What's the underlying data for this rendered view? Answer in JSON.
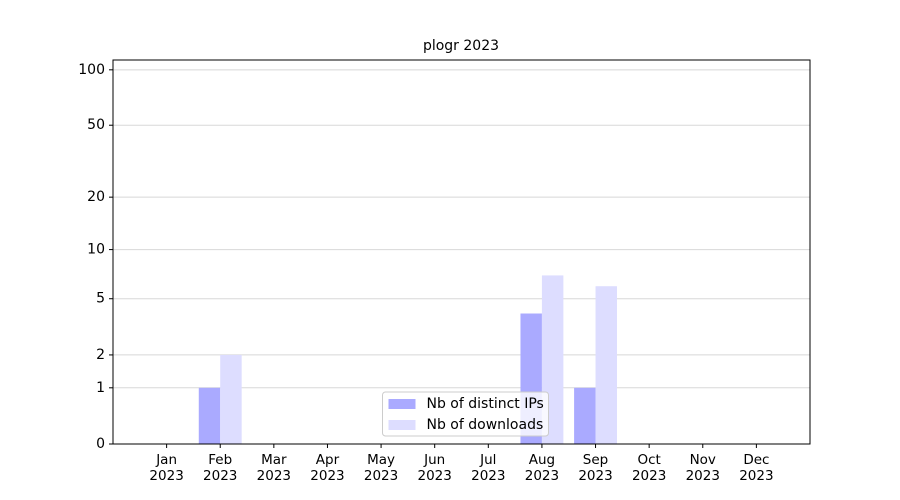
{
  "chart_data": {
    "type": "bar",
    "title": "plogr 2023",
    "scale": "log1p",
    "categories": [
      "Jan\n2023",
      "Feb\n2023",
      "Mar\n2023",
      "Apr\n2023",
      "May\n2023",
      "Jun\n2023",
      "Jul\n2023",
      "Aug\n2023",
      "Sep\n2023",
      "Oct\n2023",
      "Nov\n2023",
      "Dec\n2023"
    ],
    "series": [
      {
        "name": "Nb of distinct IPs",
        "color": "#aaaaff",
        "values": [
          0,
          1,
          0,
          0,
          0,
          0,
          0,
          4,
          1,
          0,
          0,
          0
        ]
      },
      {
        "name": "Nb of downloads",
        "color": "#ddddff",
        "values": [
          0,
          2,
          0,
          0,
          0,
          0,
          0,
          7,
          6,
          0,
          0,
          0
        ]
      }
    ],
    "ylim": [
      0,
      113
    ],
    "yticks": [
      0,
      1,
      2,
      5,
      10,
      20,
      50,
      100
    ],
    "grid": true,
    "legend": "lower center"
  }
}
